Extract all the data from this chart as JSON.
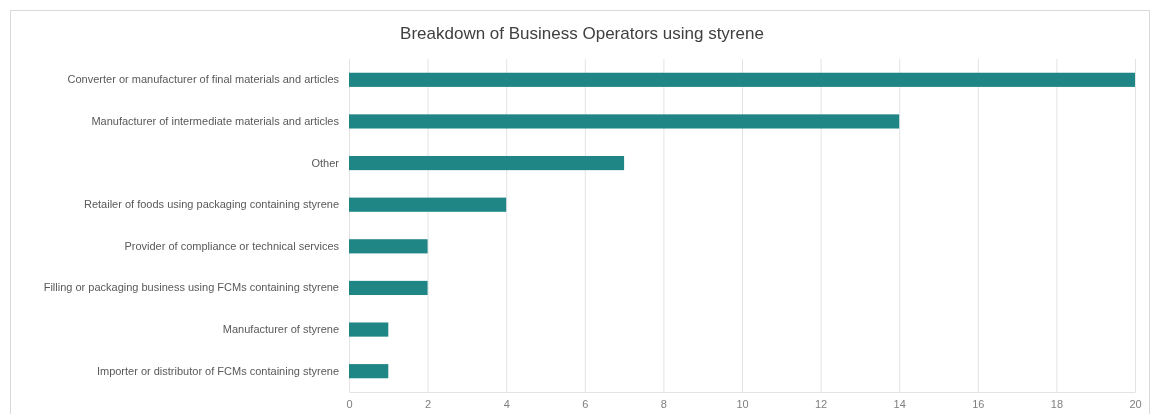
{
  "chart_data": {
    "type": "bar",
    "orientation": "horizontal",
    "title": "Breakdown of Business Operators using styrene",
    "categories": [
      "Converter or manufacturer of final materials and articles",
      "Manufacturer of intermediate materials and articles",
      "Other",
      "Retailer of foods using packaging containing styrene",
      "Provider of compliance or technical services",
      "Filling or packaging business using FCMs containing styrene",
      "Manufacturer of styrene",
      "Importer or distributor of FCMs containing styrene"
    ],
    "values": [
      20,
      14,
      7,
      4,
      2,
      2,
      1,
      1
    ],
    "color": "#1f8585",
    "xlim": [
      0,
      20
    ],
    "xticks": [
      0,
      2,
      4,
      6,
      8,
      10,
      12,
      14,
      16,
      18,
      20
    ],
    "grid": "x"
  }
}
